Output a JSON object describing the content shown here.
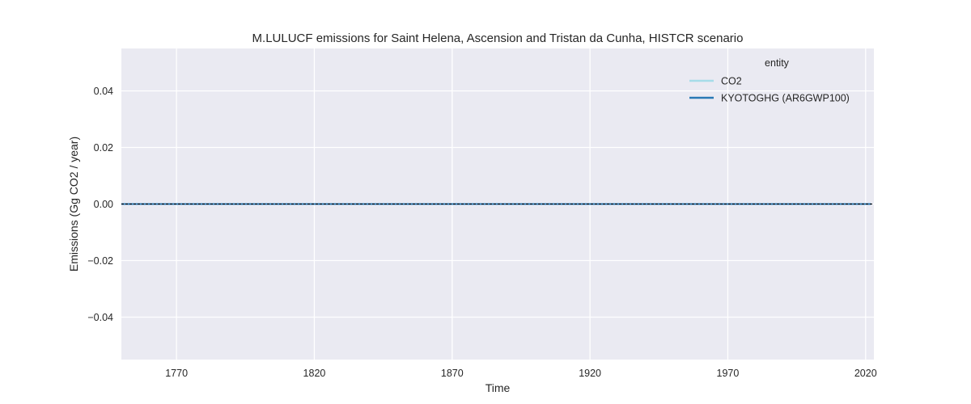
{
  "chart_data": {
    "type": "line",
    "title": "M.LULUCF emissions for Saint Helena, Ascension and Tristan da Cunha, HISTCR scenario",
    "xlabel": "Time",
    "ylabel": "Emissions (Gg CO2 / year)",
    "xlim": [
      1750,
      2023
    ],
    "ylim": [
      -0.055,
      0.055
    ],
    "xticks": [
      1770,
      1820,
      1870,
      1920,
      1970,
      2020
    ],
    "xtick_labels": [
      "1770",
      "1820",
      "1870",
      "1920",
      "1970",
      "2020"
    ],
    "yticks": [
      -0.04,
      -0.02,
      0.0,
      0.02,
      0.04
    ],
    "ytick_labels": [
      "−0.04",
      "−0.02",
      "0.00",
      "0.02",
      "0.04"
    ],
    "grid": true,
    "legend": {
      "title": "entity",
      "placement": "top-right"
    },
    "reference_line": {
      "y": 0,
      "style": "dashed",
      "color": "#000000"
    },
    "series": [
      {
        "name": "CO2",
        "color": "#a6dce8",
        "x": [
          1750,
          2022
        ],
        "values": [
          0,
          0
        ]
      },
      {
        "name": "KYOTOGHG (AR6GWP100)",
        "color": "#2878b5",
        "x": [
          1750,
          2022
        ],
        "values": [
          0,
          0
        ]
      }
    ],
    "background": "#eaeaf2",
    "grid_color": "#ffffff"
  }
}
